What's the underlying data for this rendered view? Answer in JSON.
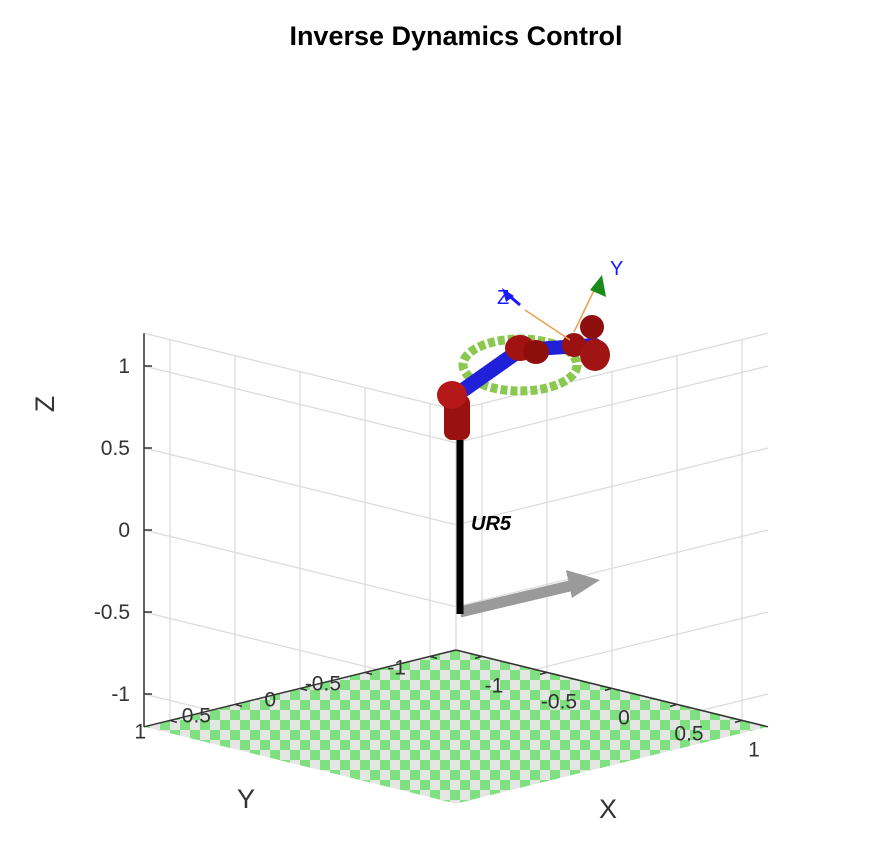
{
  "chart_data": {
    "type": "3d-robot-plot",
    "title": "Inverse Dynamics Control",
    "xlabel": "X",
    "ylabel": "Y",
    "zlabel": "Z",
    "xlim": [
      -1.2,
      1.2
    ],
    "ylim": [
      -1.2,
      1.2
    ],
    "zlim": [
      -1.2,
      1.2
    ],
    "x_ticks": [
      -1,
      -0.5,
      0,
      0.5,
      1
    ],
    "y_ticks": [
      -1,
      -0.5,
      0,
      0.5,
      1
    ],
    "z_ticks": [
      -1,
      -0.5,
      0,
      0.5,
      1
    ],
    "x_tick_labels": [
      "-1",
      "-0.5",
      "0",
      "0.5",
      "1"
    ],
    "y_tick_labels": [
      "-1",
      "-0.5",
      "0",
      "0.5",
      "1"
    ],
    "z_tick_labels": [
      "-1",
      "-0.5",
      "0",
      "0.5",
      "1"
    ],
    "grid": true,
    "robot": {
      "name": "UR5",
      "tool_frame_labels": [
        "Z",
        "Y"
      ]
    },
    "colors": {
      "floor_check": "#7ee07e",
      "floor_base": "#e4e6e4",
      "grid": "#dcdcdc",
      "link": "#2020d8",
      "joint": "#9b1010",
      "trajectory": "#8ac850",
      "base_axis": "#9a9a9a"
    }
  }
}
